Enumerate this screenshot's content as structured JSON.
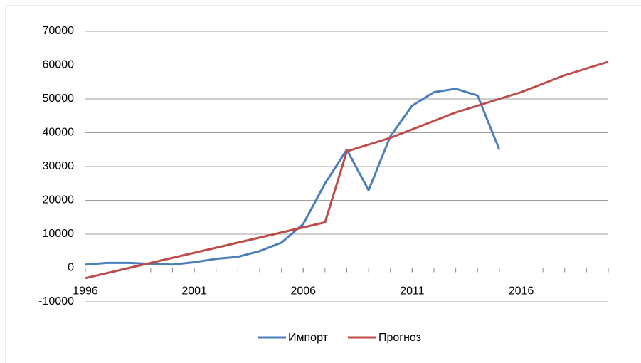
{
  "chart_data": {
    "type": "line",
    "x": [
      1996,
      1997,
      1998,
      1999,
      2000,
      2001,
      2002,
      2003,
      2004,
      2005,
      2006,
      2007,
      2008,
      2009,
      2010,
      2011,
      2012,
      2013,
      2014,
      2015,
      2016,
      2017,
      2018,
      2019,
      2020
    ],
    "series": [
      {
        "name": "Импорт",
        "color": "#4a7ebb",
        "values": [
          1000,
          1500,
          1500,
          1200,
          1000,
          1700,
          2700,
          3300,
          5000,
          7500,
          13000,
          25000,
          35000,
          23000,
          39000,
          48000,
          52000,
          53000,
          51000,
          35000,
          null,
          null,
          null,
          null,
          null
        ]
      },
      {
        "name": "Прогноз",
        "color": "#be4b48",
        "values": [
          -3000,
          -1500,
          0,
          1500,
          3000,
          4500,
          6000,
          7500,
          9000,
          10500,
          12000,
          13500,
          34500,
          36500,
          38500,
          41000,
          43500,
          46000,
          48000,
          50000,
          52000,
          54500,
          57000,
          59000,
          61000
        ]
      }
    ],
    "xlim": [
      1996,
      2020
    ],
    "xticks": [
      1996,
      2001,
      2006,
      2011,
      2016
    ],
    "ylim": [
      -10000,
      70000
    ],
    "yticks": [
      -10000,
      0,
      10000,
      20000,
      30000,
      40000,
      50000,
      60000,
      70000
    ],
    "grid": true,
    "legend": "bottom"
  }
}
